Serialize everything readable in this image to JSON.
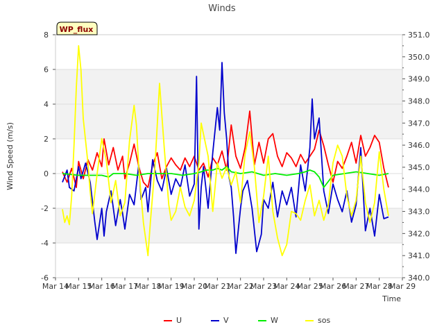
{
  "chart_data": {
    "type": "line",
    "title": "Winds",
    "xlabel": "Time",
    "ylabel": "Wind Speed (m/s)",
    "badge": "WP_flux",
    "xlim": [
      14,
      29
    ],
    "ylim": [
      -6,
      8
    ],
    "y2lim": [
      340,
      351
    ],
    "x_ticks": [
      14,
      15,
      16,
      17,
      18,
      19,
      20,
      21,
      22,
      23,
      24,
      25,
      26,
      27,
      28,
      29
    ],
    "x_tick_labels": [
      "Mar 14",
      "Mar 15",
      "Mar 16",
      "Mar 17",
      "Mar 18",
      "Mar 19",
      "Mar 20",
      "Mar 21",
      "Mar 22",
      "Mar 23",
      "Mar 24",
      "Mar 25",
      "Mar 26",
      "Mar 27",
      "Mar 28",
      "Mar 29"
    ],
    "y_ticks": [
      -6,
      -4,
      -2,
      0,
      2,
      4,
      6,
      8
    ],
    "y_tick_labels": [
      "-6",
      "-4",
      "-2",
      "0",
      "2",
      "4",
      "6",
      "8"
    ],
    "y2_ticks": [
      340,
      341,
      342,
      343,
      344,
      345,
      346,
      347,
      348,
      349,
      350,
      351
    ],
    "y2_tick_labels": [
      "340.0",
      "341.0",
      "342.0",
      "343.0",
      "344.0",
      "345.0",
      "346.0",
      "347.0",
      "348.0",
      "349.0",
      "350.0",
      "351.0"
    ],
    "bands": [
      [
        -4,
        -2
      ],
      [
        2,
        6
      ]
    ],
    "legend": [
      "U",
      "V",
      "W",
      "sos"
    ],
    "series": [
      {
        "name": "U",
        "color": "#ff0000",
        "axis": "left",
        "x": [
          14.3,
          14.5,
          14.7,
          14.9,
          15.0,
          15.2,
          15.4,
          15.6,
          15.8,
          16.0,
          16.1,
          16.3,
          16.5,
          16.7,
          16.9,
          17.0,
          17.2,
          17.4,
          17.6,
          17.8,
          18.0,
          18.2,
          18.4,
          18.6,
          18.8,
          19.0,
          19.2,
          19.4,
          19.6,
          19.8,
          20.0,
          20.2,
          20.4,
          20.6,
          20.8,
          21.0,
          21.2,
          21.4,
          21.6,
          21.8,
          22.0,
          22.2,
          22.4,
          22.6,
          22.8,
          23.0,
          23.2,
          23.4,
          23.6,
          23.8,
          24.0,
          24.2,
          24.4,
          24.6,
          24.8,
          25.0,
          25.2,
          25.4,
          25.6,
          25.8,
          26.0,
          26.2,
          26.4,
          26.6,
          26.8,
          27.0,
          27.2,
          27.4,
          27.6,
          27.8,
          28.0,
          28.2,
          28.4
        ],
        "values": [
          0.1,
          -0.5,
          0.3,
          -0.8,
          0.7,
          -0.3,
          0.8,
          0.2,
          1.2,
          0.4,
          2.0,
          0.5,
          1.5,
          0.2,
          1.0,
          -0.3,
          0.6,
          1.7,
          0.4,
          -0.5,
          -0.8,
          0.5,
          1.2,
          -0.3,
          0.4,
          0.9,
          0.5,
          0.2,
          0.9,
          0.4,
          1.0,
          0.2,
          0.6,
          -0.2,
          0.9,
          0.5,
          1.3,
          0.2,
          2.8,
          1.0,
          0.3,
          1.5,
          3.6,
          0.5,
          1.8,
          0.6,
          2.0,
          2.3,
          1.0,
          0.4,
          1.2,
          0.9,
          0.4,
          1.1,
          0.6,
          1.0,
          1.4,
          2.5,
          1.6,
          0.5,
          -0.5,
          0.7,
          0.3,
          1.0,
          1.8,
          0.6,
          2.2,
          1.0,
          1.5,
          2.2,
          1.8,
          0.3,
          -0.8
        ]
      },
      {
        "name": "V",
        "color": "#0000cc",
        "axis": "left",
        "x": [
          14.3,
          14.5,
          14.6,
          14.8,
          15.0,
          15.1,
          15.3,
          15.5,
          15.7,
          15.8,
          16.0,
          16.1,
          16.2,
          16.4,
          16.6,
          16.8,
          16.9,
          17.0,
          17.2,
          17.4,
          17.6,
          17.7,
          17.9,
          18.0,
          18.2,
          18.4,
          18.6,
          18.8,
          19.0,
          19.2,
          19.4,
          19.6,
          19.8,
          20.0,
          20.1,
          20.2,
          20.3,
          20.4,
          20.6,
          20.8,
          21.0,
          21.1,
          21.2,
          21.3,
          21.4,
          21.5,
          21.6,
          21.7,
          21.8,
          22.0,
          22.1,
          22.3,
          22.5,
          22.7,
          22.9,
          23.0,
          23.2,
          23.4,
          23.6,
          23.8,
          24.0,
          24.2,
          24.4,
          24.6,
          24.8,
          25.0,
          25.1,
          25.2,
          25.4,
          25.6,
          25.8,
          26.0,
          26.2,
          26.4,
          26.6,
          26.8,
          27.0,
          27.2,
          27.4,
          27.6,
          27.8,
          28.0,
          28.2,
          28.4
        ],
        "values": [
          -0.5,
          0.2,
          -0.8,
          -1.0,
          0.4,
          -0.3,
          0.6,
          -0.5,
          -2.8,
          -3.8,
          -2.0,
          -3.6,
          -2.2,
          -1.0,
          -3.0,
          -1.5,
          -2.3,
          -3.2,
          -1.2,
          -1.8,
          0.5,
          -1.5,
          -0.8,
          -2.2,
          0.8,
          -0.4,
          -1.0,
          0.3,
          -1.2,
          -0.3,
          -0.8,
          0.5,
          -1.3,
          -0.6,
          5.6,
          -3.2,
          -0.8,
          0.4,
          -2.0,
          1.2,
          3.8,
          2.5,
          6.4,
          3.5,
          2.0,
          -0.2,
          -0.8,
          -2.5,
          -4.6,
          -2.0,
          -1.0,
          -0.4,
          -2.0,
          -4.5,
          -3.5,
          -1.5,
          -2.0,
          -0.5,
          -2.5,
          -1.0,
          -1.8,
          -0.8,
          -2.5,
          0.5,
          -1.0,
          1.5,
          4.3,
          2.0,
          3.2,
          -1.0,
          -2.3,
          -0.6,
          -1.5,
          -2.2,
          -1.0,
          -2.8,
          -1.8,
          1.5,
          -3.3,
          -2.0,
          -3.6,
          -1.2,
          -2.6,
          -2.5
        ]
      },
      {
        "name": "W",
        "color": "#00ee00",
        "axis": "left",
        "x": [
          14.3,
          15.0,
          15.5,
          16.0,
          16.3,
          16.5,
          17.0,
          17.5,
          18.0,
          18.5,
          19.0,
          19.5,
          20.0,
          20.3,
          20.5,
          20.8,
          21.0,
          21.2,
          21.4,
          21.6,
          22.0,
          22.5,
          23.0,
          23.5,
          24.0,
          24.5,
          24.8,
          25.0,
          25.2,
          25.4,
          25.6,
          26.0,
          26.5,
          27.0,
          27.5,
          28.0,
          28.4
        ],
        "values": [
          0.0,
          -0.1,
          -0.1,
          -0.1,
          -0.2,
          0.0,
          0.0,
          -0.1,
          0.0,
          0.0,
          0.0,
          -0.1,
          0.0,
          0.1,
          0.2,
          0.2,
          0.3,
          0.2,
          0.4,
          0.1,
          0.0,
          0.1,
          -0.1,
          0.0,
          -0.1,
          0.0,
          0.1,
          0.2,
          0.1,
          -0.2,
          -0.8,
          -0.1,
          0.0,
          0.1,
          0.0,
          -0.1,
          0.0
        ]
      },
      {
        "name": "sos",
        "color": "#ffff00",
        "axis": "right",
        "x": [
          14.3,
          14.4,
          14.5,
          14.6,
          14.7,
          14.8,
          14.9,
          15.0,
          15.1,
          15.2,
          15.4,
          15.5,
          15.6,
          15.8,
          16.0,
          16.2,
          16.4,
          16.6,
          16.8,
          17.0,
          17.2,
          17.4,
          17.5,
          17.6,
          17.8,
          18.0,
          18.1,
          18.3,
          18.5,
          18.7,
          18.9,
          19.0,
          19.2,
          19.4,
          19.6,
          19.8,
          20.0,
          20.2,
          20.3,
          20.6,
          20.8,
          21.0,
          21.2,
          21.4,
          21.6,
          21.8,
          22.0,
          22.2,
          22.4,
          22.6,
          22.8,
          23.0,
          23.2,
          23.4,
          23.6,
          23.8,
          24.0,
          24.2,
          24.4,
          24.6,
          24.8,
          25.0,
          25.2,
          25.4,
          25.6,
          25.8,
          26.0,
          26.2,
          26.4,
          26.6,
          26.8,
          27.0,
          27.2,
          27.4,
          27.6,
          27.8,
          28.0,
          28.2,
          28.4
        ],
        "values": [
          343.1,
          342.5,
          342.8,
          342.4,
          343.7,
          346.0,
          348.6,
          350.5,
          349.4,
          347.2,
          345.2,
          343.9,
          342.9,
          344.7,
          346.3,
          345.3,
          343.4,
          344.4,
          342.8,
          343.4,
          346.2,
          347.8,
          346.9,
          345.0,
          342.5,
          341.0,
          342.5,
          345.0,
          348.8,
          345.9,
          343.3,
          342.6,
          343.0,
          344.1,
          343.2,
          342.8,
          343.5,
          345.2,
          347.0,
          345.5,
          343.0,
          345.2,
          344.5,
          345.0,
          344.2,
          344.8,
          343.4,
          345.6,
          346.6,
          345.0,
          342.5,
          343.7,
          345.5,
          343.0,
          341.8,
          341.0,
          341.5,
          343.0,
          342.9,
          342.6,
          343.5,
          344.2,
          342.8,
          343.5,
          342.6,
          343.3,
          345.2,
          346.0,
          345.5,
          343.7,
          342.8,
          343.5,
          345.5,
          343.4,
          342.5,
          343.4,
          345.7,
          344.0,
          342.8
        ]
      }
    ]
  }
}
